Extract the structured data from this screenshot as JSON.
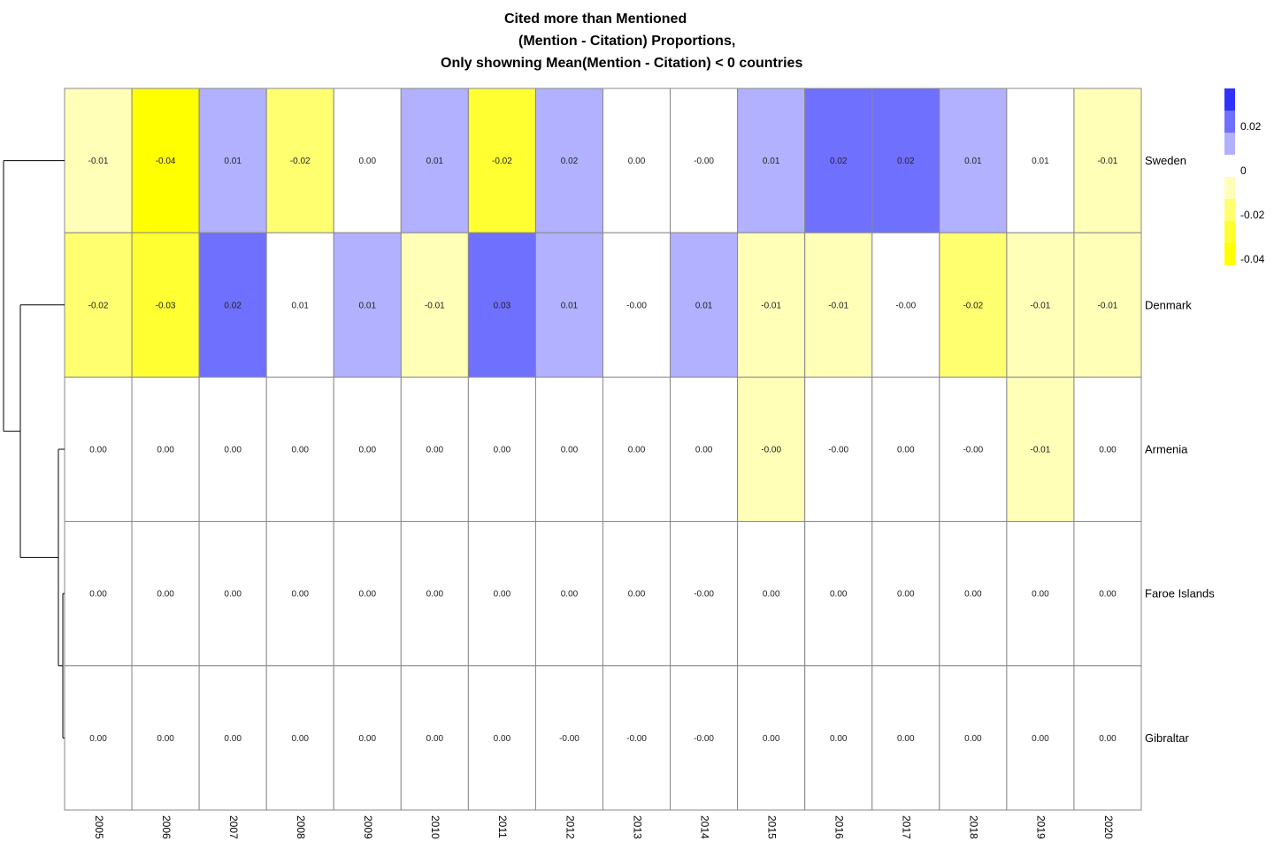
{
  "chart_data": {
    "type": "heatmap",
    "title_lines": [
      "Cited more than Mentioned",
      "(Mention - Citation) Proportions,",
      "Only showning Mean(Mention - Citation) < 0 countries"
    ],
    "rows": [
      "Sweden",
      "Denmark",
      "Armenia",
      "Faroe Islands",
      "Gibraltar"
    ],
    "columns": [
      "2005",
      "2006",
      "2007",
      "2008",
      "2009",
      "2010",
      "2011",
      "2012",
      "2013",
      "2014",
      "2015",
      "2016",
      "2017",
      "2018",
      "2019",
      "2020"
    ],
    "value_labels": [
      [
        "-0.01",
        "-0.04",
        "0.01",
        "-0.02",
        "0.00",
        "0.01",
        "-0.02",
        "0.02",
        "0.00",
        "-0.00",
        "0.01",
        "0.02",
        "0.02",
        "0.01",
        "0.01",
        "-0.01"
      ],
      [
        "-0.02",
        "-0.03",
        "0.02",
        "0.01",
        "0.01",
        "-0.01",
        "0.03",
        "0.01",
        "-0.00",
        "0.01",
        "-0.01",
        "-0.01",
        "-0.00",
        "-0.02",
        "-0.01",
        "-0.01"
      ],
      [
        "0.00",
        "0.00",
        "0.00",
        "0.00",
        "0.00",
        "0.00",
        "0.00",
        "0.00",
        "0.00",
        "0.00",
        "-0.00",
        "-0.00",
        "0.00",
        "-0.00",
        "-0.01",
        "0.00"
      ],
      [
        "0.00",
        "0.00",
        "0.00",
        "0.00",
        "0.00",
        "0.00",
        "0.00",
        "0.00",
        "0.00",
        "-0.00",
        "0.00",
        "0.00",
        "0.00",
        "0.00",
        "0.00",
        "0.00"
      ],
      [
        "0.00",
        "0.00",
        "0.00",
        "0.00",
        "0.00",
        "0.00",
        "0.00",
        "-0.00",
        "-0.00",
        "-0.00",
        "0.00",
        "0.00",
        "0.00",
        "0.00",
        "0.00",
        "0.00"
      ]
    ],
    "color_bins": [
      [
        "y1",
        "y4",
        "b1",
        "y2",
        "w",
        "b1",
        "y3",
        "b1",
        "w",
        "w",
        "b1",
        "b2",
        "b2",
        "b1",
        "w",
        "y1"
      ],
      [
        "y2",
        "y3",
        "b2",
        "w",
        "b1",
        "y1",
        "b2",
        "b1",
        "w",
        "b1",
        "y1",
        "y1",
        "w",
        "y2",
        "y1",
        "y1"
      ],
      [
        "w",
        "w",
        "w",
        "w",
        "w",
        "w",
        "w",
        "w",
        "w",
        "w",
        "y1",
        "w",
        "w",
        "w",
        "y1",
        "w"
      ],
      [
        "w",
        "w",
        "w",
        "w",
        "w",
        "w",
        "w",
        "w",
        "w",
        "w",
        "w",
        "w",
        "w",
        "w",
        "w",
        "w"
      ],
      [
        "w",
        "w",
        "w",
        "w",
        "w",
        "w",
        "w",
        "w",
        "w",
        "w",
        "w",
        "w",
        "w",
        "w",
        "w",
        "w"
      ]
    ],
    "colors": {
      "w": "#ffffff",
      "b1": "#b1b1ff",
      "b2": "#7070ff",
      "b3": "#3131ff",
      "y1": "#ffffb8",
      "y2": "#ffff70",
      "y3": "#ffff31",
      "y4": "#ffff00"
    },
    "legend": {
      "position": "right",
      "labels": [
        "0.02",
        "0",
        "-0.02",
        "-0.04"
      ],
      "bins_top_to_bottom": [
        "b3",
        "b2",
        "b1",
        "w",
        "y1",
        "y2",
        "y3",
        "y4"
      ]
    },
    "row_dendrogram": true,
    "grid_color": "#888888"
  }
}
